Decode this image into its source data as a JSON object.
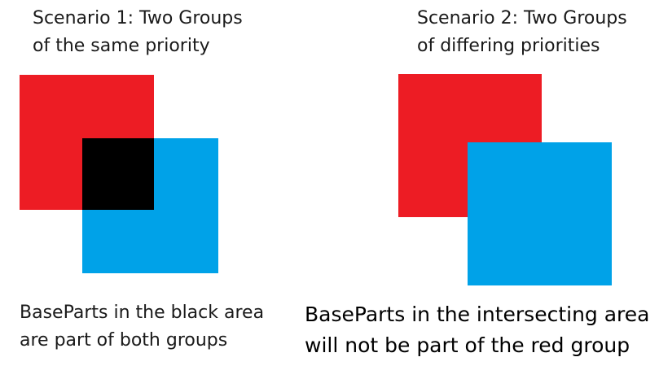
{
  "scenario1": {
    "title_line1": "Scenario 1: Two Groups",
    "title_line2": "of the same priority",
    "caption_line1": "BaseParts in the black area",
    "caption_line2": "are part of both groups"
  },
  "scenario2": {
    "title_line1": "Scenario 2: Two Groups",
    "title_line2": "of differing priorities",
    "caption_line1": "BaseParts in the intersecting area",
    "caption_line2": "will not be part of the red group"
  },
  "colors": {
    "red": "#ED1C24",
    "blue": "#00A2E8",
    "black": "#000000"
  }
}
